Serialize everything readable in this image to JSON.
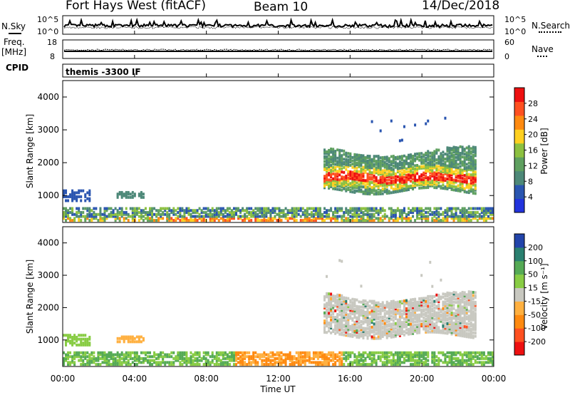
{
  "header": {
    "title": "Fort Hays West (fitACF)",
    "beam": "Beam 10",
    "date": "14/Dec/2018"
  },
  "top_panels": {
    "nsky_label": "N.Sky",
    "nsky_ticks": [
      "10^5",
      "10^0"
    ],
    "nsearch_label": "N.Search",
    "nsearch_ticks": [
      "10^5",
      "10^0"
    ],
    "freq_label_1": "Freq.",
    "freq_label_2": "[MHz]",
    "freq_ticks": [
      "18",
      "8"
    ],
    "nave_label": "Nave",
    "nave_ticks": [
      "60",
      "0"
    ],
    "cpid_label": "CPID",
    "cpid_text": "themis -3300 IF"
  },
  "colors": {
    "power_scale": [
      "#2233dd",
      "#2a55b0",
      "#4d8878",
      "#5fa060",
      "#8cc040",
      "#ffd020",
      "#ff8a10",
      "#ff5020",
      "#ee1010"
    ],
    "velocity_scale": [
      "#ee1010",
      "#ff5020",
      "#ff8a10",
      "#ffb040",
      "#c8c8c0",
      "#88cc44",
      "#55aa55",
      "#2a8070",
      "#2244aa"
    ]
  },
  "chart_data": [
    {
      "type": "heatmap",
      "quantity": "Power",
      "ylabel": "Slant Range [km]",
      "yticks": [
        "4000",
        "3000",
        "2000",
        "1000"
      ],
      "ylim": [
        180,
        4500
      ],
      "colorbar_label": "Power [dB]",
      "colorbar_ticks": [
        "28",
        "24",
        "20",
        "16",
        "12",
        "8",
        "4"
      ],
      "colorbar_range": [
        0,
        32
      ],
      "xticks": [
        "00:00",
        "04:00",
        "08:00",
        "12:00",
        "16:00",
        "20:00",
        "00:00"
      ],
      "xlim": [
        0,
        24
      ],
      "x_unit": "hours UT"
    },
    {
      "type": "heatmap",
      "quantity": "Velocity",
      "ylabel": "Slant Range [km]",
      "yticks": [
        "4000",
        "3000",
        "2000",
        "1000"
      ],
      "ylim": [
        180,
        4500
      ],
      "colorbar_label": "Velocity [m s⁻¹]",
      "colorbar_ticks": [
        "200",
        "100",
        "50",
        "15",
        "-15",
        "-50",
        "-100",
        "-200"
      ],
      "xticks": [
        "00:00",
        "04:00",
        "08:00",
        "12:00",
        "16:00",
        "20:00",
        "00:00"
      ],
      "xlim": [
        0,
        24
      ],
      "xlabel": "Time UT"
    }
  ]
}
